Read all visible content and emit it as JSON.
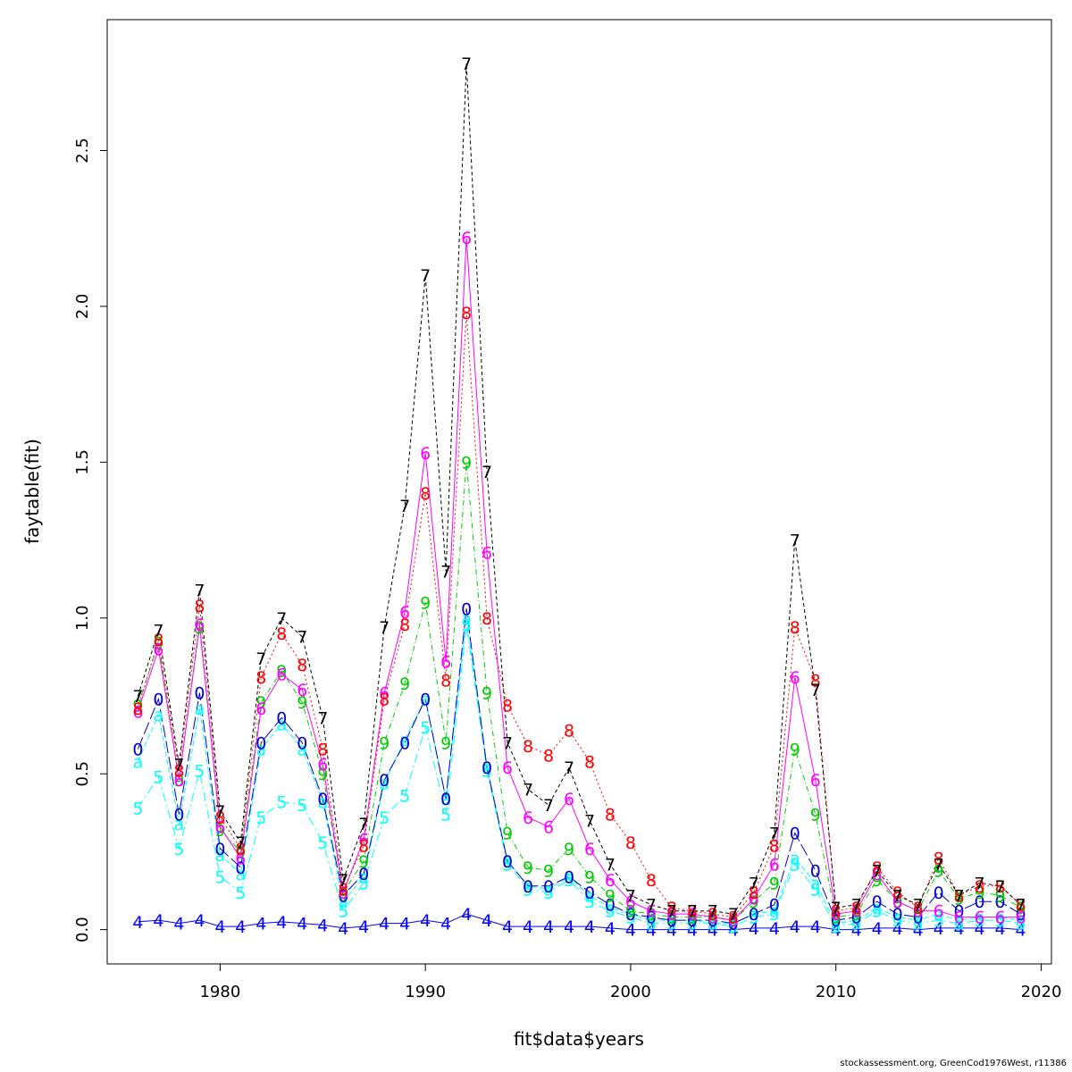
{
  "chart_data": {
    "type": "line",
    "title": "",
    "xlabel": "fit$data$years",
    "ylabel": "faytable(fit)",
    "xlim": [
      1974.5,
      2020.5
    ],
    "ylim": [
      -0.11,
      2.92
    ],
    "x_ticks": [
      1980,
      1990,
      2000,
      2010,
      2020
    ],
    "y_ticks": [
      0.0,
      0.5,
      1.0,
      1.5,
      2.0,
      2.5
    ],
    "x_tick_labels": [
      "1980",
      "1990",
      "2000",
      "2010",
      "2020"
    ],
    "y_tick_labels": [
      "0.0",
      "0.5",
      "1.0",
      "1.5",
      "2.0",
      "2.5"
    ],
    "grid": false,
    "x": [
      1976,
      1977,
      1978,
      1979,
      1980,
      1981,
      1982,
      1983,
      1984,
      1985,
      1986,
      1987,
      1988,
      1989,
      1990,
      1991,
      1992,
      1993,
      1994,
      1995,
      1996,
      1997,
      1998,
      1999,
      2000,
      2001,
      2002,
      2003,
      2004,
      2005,
      2006,
      2007,
      2008,
      2009,
      2010,
      2011,
      2012,
      2013,
      2014,
      2015,
      2016,
      2017,
      2018,
      2019
    ],
    "series": [
      {
        "name": "4",
        "color": "#0000FF",
        "dash": "none",
        "values": [
          0.025,
          0.03,
          0.02,
          0.03,
          0.01,
          0.01,
          0.02,
          0.025,
          0.02,
          0.015,
          0.005,
          0.01,
          0.02,
          0.02,
          0.03,
          0.02,
          0.05,
          0.03,
          0.01,
          0.01,
          0.01,
          0.01,
          0.01,
          0.005,
          0.0,
          0.0,
          0.0,
          0.0,
          0.0,
          0.0,
          0.005,
          0.005,
          0.01,
          0.01,
          0.0,
          0.0,
          0.005,
          0.005,
          0.0,
          0.005,
          0.005,
          0.005,
          0.005,
          0.0
        ]
      },
      {
        "name": "5",
        "color": "#00FFFF",
        "dash": "10 4 2 4",
        "values": [
          0.39,
          0.49,
          0.26,
          0.51,
          0.17,
          0.12,
          0.36,
          0.41,
          0.4,
          0.28,
          0.06,
          0.15,
          0.36,
          0.43,
          0.65,
          0.37,
          0.98,
          0.51,
          0.21,
          0.13,
          0.12,
          0.16,
          0.09,
          0.06,
          0.04,
          0.02,
          0.02,
          0.02,
          0.02,
          0.01,
          0.04,
          0.05,
          0.21,
          0.13,
          0.01,
          0.02,
          0.06,
          0.03,
          0.02,
          0.03,
          0.02,
          0.03,
          0.03,
          0.02
        ]
      },
      {
        "name": "a",
        "color": "#00FFFF",
        "dash": "6 3",
        "values": [
          0.54,
          0.69,
          0.34,
          0.71,
          0.24,
          0.18,
          0.58,
          0.66,
          0.58,
          0.41,
          0.09,
          0.17,
          0.47,
          0.61,
          0.74,
          0.42,
          1.0,
          0.52,
          0.22,
          0.14,
          0.13,
          0.17,
          0.11,
          0.07,
          0.05,
          0.03,
          0.03,
          0.03,
          0.02,
          0.02,
          0.05,
          0.06,
          0.23,
          0.15,
          0.02,
          0.03,
          0.07,
          0.04,
          0.03,
          0.05,
          0.03,
          0.04,
          0.04,
          0.03
        ]
      },
      {
        "name": "0",
        "color": "#0000CC",
        "dash": "14 4",
        "values": [
          0.58,
          0.74,
          0.37,
          0.76,
          0.26,
          0.2,
          0.6,
          0.68,
          0.6,
          0.42,
          0.11,
          0.18,
          0.48,
          0.6,
          0.74,
          0.42,
          1.03,
          0.52,
          0.22,
          0.14,
          0.14,
          0.17,
          0.12,
          0.08,
          0.05,
          0.04,
          0.03,
          0.03,
          0.03,
          0.02,
          0.05,
          0.08,
          0.31,
          0.19,
          0.03,
          0.04,
          0.09,
          0.05,
          0.04,
          0.12,
          0.06,
          0.09,
          0.09,
          0.05
        ]
      },
      {
        "name": "9",
        "color": "#00CC00",
        "dash": "6 3 1 3",
        "values": [
          0.72,
          0.92,
          0.48,
          0.97,
          0.32,
          0.25,
          0.73,
          0.83,
          0.73,
          0.5,
          0.12,
          0.22,
          0.6,
          0.79,
          1.05,
          0.6,
          1.5,
          0.76,
          0.31,
          0.2,
          0.19,
          0.26,
          0.17,
          0.11,
          0.06,
          0.05,
          0.04,
          0.04,
          0.04,
          0.03,
          0.09,
          0.15,
          0.58,
          0.37,
          0.04,
          0.05,
          0.16,
          0.09,
          0.06,
          0.19,
          0.1,
          0.12,
          0.11,
          0.07
        ]
      },
      {
        "name": "6",
        "color": "#FF00FF",
        "dash": "none",
        "values": [
          0.7,
          0.9,
          0.48,
          0.98,
          0.33,
          0.23,
          0.71,
          0.82,
          0.77,
          0.53,
          0.12,
          0.29,
          0.76,
          1.02,
          1.53,
          0.86,
          2.22,
          1.21,
          0.52,
          0.36,
          0.33,
          0.42,
          0.26,
          0.16,
          0.09,
          0.06,
          0.05,
          0.05,
          0.04,
          0.03,
          0.1,
          0.21,
          0.81,
          0.48,
          0.05,
          0.06,
          0.18,
          0.09,
          0.06,
          0.06,
          0.04,
          0.04,
          0.04,
          0.04
        ]
      },
      {
        "name": "8",
        "color": "#FF0000",
        "dash": "2 3",
        "values": [
          0.71,
          0.93,
          0.51,
          1.04,
          0.36,
          0.26,
          0.81,
          0.95,
          0.85,
          0.58,
          0.13,
          0.27,
          0.74,
          0.98,
          1.4,
          0.8,
          1.98,
          1.0,
          0.72,
          0.59,
          0.56,
          0.64,
          0.54,
          0.37,
          0.28,
          0.16,
          0.07,
          0.06,
          0.05,
          0.04,
          0.12,
          0.27,
          0.97,
          0.8,
          0.06,
          0.07,
          0.2,
          0.12,
          0.07,
          0.23,
          0.11,
          0.14,
          0.14,
          0.08
        ]
      },
      {
        "name": "7",
        "color": "#000000",
        "dash": "4 3",
        "values": [
          0.75,
          0.96,
          0.53,
          1.09,
          0.38,
          0.28,
          0.87,
          1.0,
          0.94,
          0.68,
          0.16,
          0.34,
          0.97,
          1.36,
          2.1,
          1.15,
          2.78,
          1.47,
          0.6,
          0.45,
          0.4,
          0.52,
          0.35,
          0.21,
          0.11,
          0.08,
          0.06,
          0.06,
          0.06,
          0.05,
          0.15,
          0.31,
          1.25,
          0.77,
          0.07,
          0.08,
          0.19,
          0.11,
          0.08,
          0.21,
          0.11,
          0.15,
          0.14,
          0.08
        ]
      }
    ]
  },
  "footer": {
    "credit": "stockassessment.org, GreenCod1976West, r11386"
  }
}
